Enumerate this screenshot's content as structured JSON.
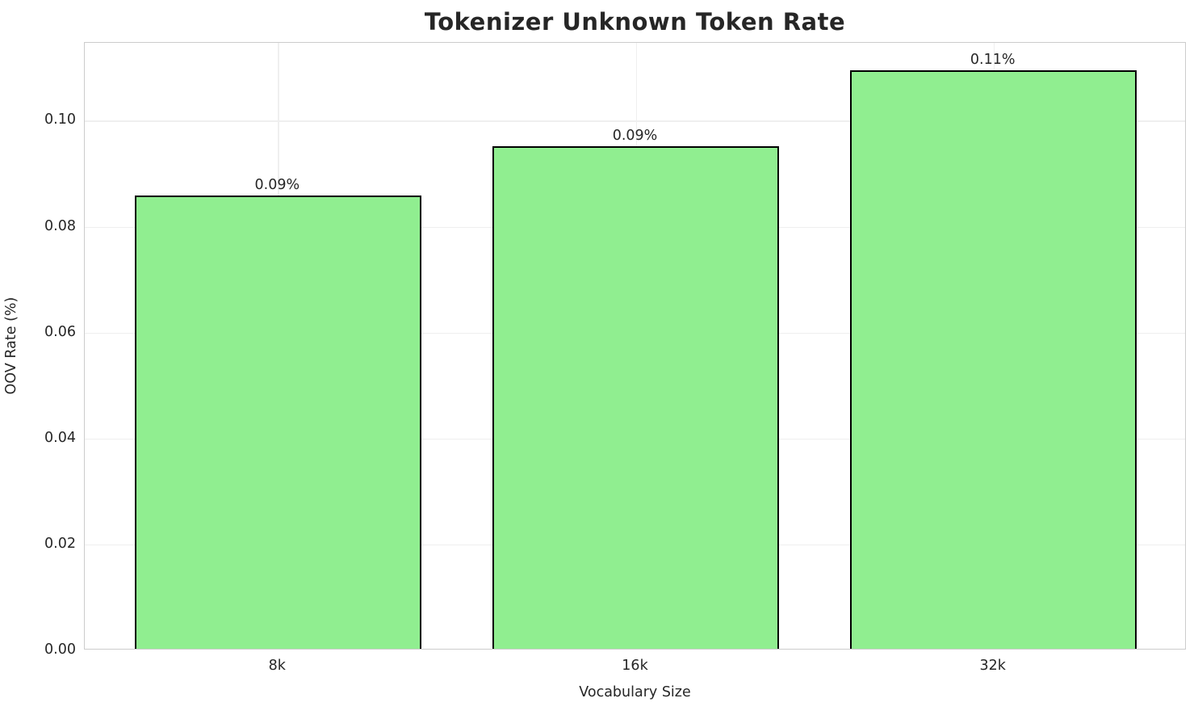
{
  "title": "Tokenizer Unknown Token Rate",
  "chart_data": {
    "type": "bar",
    "title": "Tokenizer Unknown Token Rate",
    "xlabel": "Vocabulary Size",
    "ylabel": "OOV Rate (%)",
    "categories": [
      "8k",
      "16k",
      "32k"
    ],
    "values": [
      0.0855,
      0.0948,
      0.1092
    ],
    "bar_labels": [
      "0.09%",
      "0.09%",
      "0.11%"
    ],
    "yticks": [
      0.0,
      0.02,
      0.04,
      0.06,
      0.08,
      0.1
    ],
    "ytick_labels": [
      "0.00",
      "0.02",
      "0.04",
      "0.06",
      "0.08",
      "0.10"
    ],
    "ylim": [
      0,
      0.1147
    ],
    "grid": true,
    "legend": "none",
    "bar_width_frac": 0.8,
    "colors": {
      "bar_fill": "#90EE90",
      "bar_edge": "#000000",
      "grid": "#efefef",
      "spine": "#cccccc",
      "text": "#262626",
      "background": "#ffffff"
    }
  }
}
